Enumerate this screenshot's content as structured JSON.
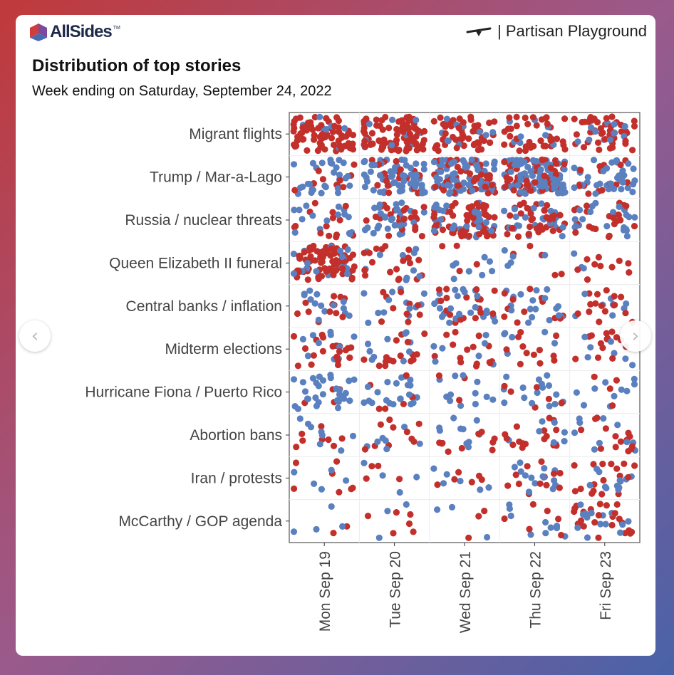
{
  "brand": {
    "logo_text": "AllSides",
    "trademark": "TM",
    "series_name": "| Partisan Playground",
    "logo_colors": [
      "#d23c3c",
      "#7a4a9c",
      "#4a6ab0"
    ]
  },
  "header": {
    "title": "Distribution of top stories",
    "subtitle": "Week ending on Saturday, September 24, 2022"
  },
  "colors": {
    "left": "#c3302c",
    "right": "#5b80c0"
  },
  "chart_data": {
    "type": "scatter",
    "subtype": "jittered categorical dot plot",
    "title": "Distribution of top stories",
    "subtitle": "Week ending on Saturday, September 24, 2022",
    "columns": [
      "Mon Sep 19",
      "Tue Sep 20",
      "Wed Sep 21",
      "Thu Sep 22",
      "Fri Sep 23"
    ],
    "rows": [
      "Migrant flights",
      "Trump / Mar-a-Lago",
      "Russia / nuclear threats",
      "Queen Elizabeth II funeral",
      "Central banks / inflation",
      "Midterm elections",
      "Hurricane Fiona / Puerto Rico",
      "Abortion bans",
      "Iran / protests",
      "McCarthy / GOP agenda"
    ],
    "series": [
      {
        "name": "red",
        "color": "#c3302c",
        "counts": [
          [
            70,
            85,
            55,
            38,
            45
          ],
          [
            10,
            20,
            45,
            55,
            15
          ],
          [
            14,
            24,
            60,
            36,
            22
          ],
          [
            80,
            20,
            4,
            5,
            10
          ],
          [
            12,
            10,
            18,
            12,
            16
          ],
          [
            22,
            16,
            15,
            12,
            14
          ],
          [
            4,
            6,
            3,
            6,
            4
          ],
          [
            8,
            10,
            10,
            16,
            14
          ],
          [
            7,
            4,
            6,
            12,
            18
          ],
          [
            2,
            6,
            3,
            6,
            24
          ]
        ]
      },
      {
        "name": "blue",
        "color": "#5b80c0",
        "counts": [
          [
            8,
            10,
            10,
            8,
            12
          ],
          [
            30,
            60,
            70,
            80,
            40
          ],
          [
            16,
            28,
            30,
            24,
            22
          ],
          [
            20,
            10,
            8,
            5,
            3
          ],
          [
            14,
            14,
            24,
            18,
            8
          ],
          [
            10,
            10,
            7,
            6,
            7
          ],
          [
            32,
            22,
            12,
            16,
            10
          ],
          [
            8,
            7,
            10,
            8,
            10
          ],
          [
            5,
            4,
            6,
            14,
            12
          ],
          [
            4,
            3,
            3,
            10,
            14
          ]
        ]
      }
    ]
  }
}
